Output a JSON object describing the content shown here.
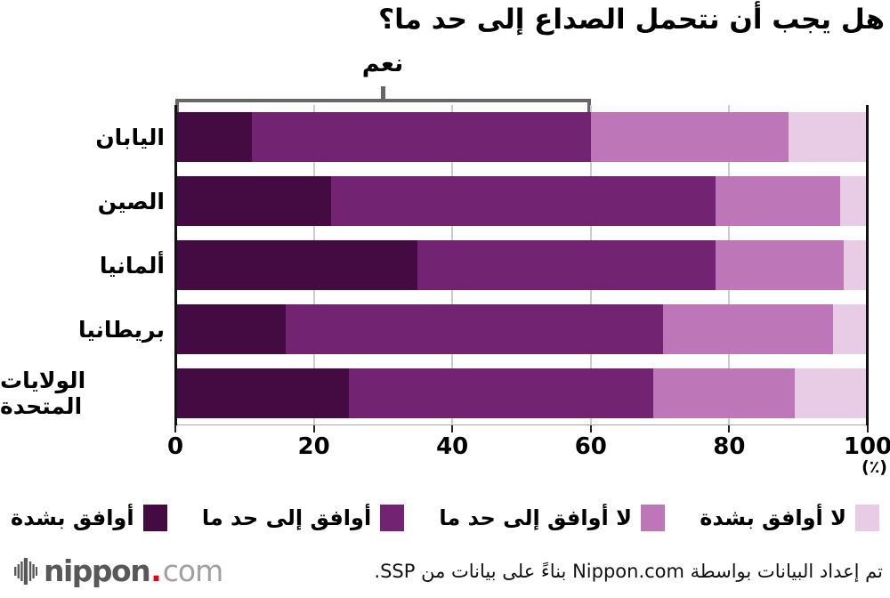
{
  "title": "هل يجب أن نتحمل الصداع إلى حد ما؟",
  "axis": {
    "ticks": [
      0,
      20,
      40,
      60,
      80,
      100
    ],
    "unit_label": "(٪)"
  },
  "legend": {
    "items_rtl_order": [
      {
        "label": "لا أوافق بشدة",
        "color": "#e8cbe4"
      },
      {
        "label": "لا أوافق إلى حد ما",
        "color": "#bd77b8"
      },
      {
        "label": "أوافق إلى حد ما",
        "color": "#722472"
      },
      {
        "label": "أوافق بشدة",
        "color": "#440a42"
      }
    ]
  },
  "chart_data": {
    "type": "bar",
    "orientation": "horizontal",
    "stacked": true,
    "title": "هل يجب أن نتحمل الصداع إلى حد ما؟",
    "unit": "٪",
    "xlim": [
      0,
      100
    ],
    "grid": "vertical",
    "categories": [
      "اليابان",
      "الصين",
      "ألمانيا",
      "بريطانيا",
      "الولايات المتحدة"
    ],
    "series": [
      {
        "name": "أوافق بشدة",
        "color": "#440a42",
        "values": [
          11,
          22.5,
          35,
          16,
          25
        ]
      },
      {
        "name": "أوافق إلى حد ما",
        "color": "#722472",
        "values": [
          49,
          55.5,
          43,
          54.5,
          44
        ]
      },
      {
        "name": "لا أوافق إلى حد ما",
        "color": "#bd77b8",
        "values": [
          28.5,
          18,
          18.5,
          24.5,
          20.5
        ]
      },
      {
        "name": "لا أوافق بشدة",
        "color": "#e8cbe4",
        "values": [
          11.5,
          4,
          3.5,
          5,
          10.5
        ]
      }
    ],
    "bracket": {
      "label": "نعم",
      "from": 0,
      "to": 60
    }
  },
  "footer": {
    "logo": {
      "nippon": "nippon",
      "dot": ".",
      "com": "com"
    },
    "attribution": "تم إعداد البيانات بواسطة Nippon.com بناءً على بيانات من SSP."
  }
}
